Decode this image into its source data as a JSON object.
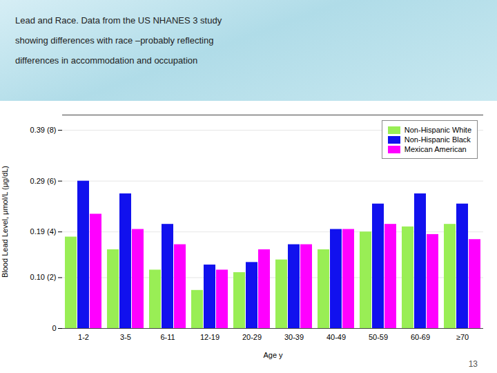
{
  "chart_data": {
    "type": "bar",
    "title": "Lead and Race. Data from the US NHANES 3 study",
    "subtitle": "showing differences with race –probably reflecting\ndifferences in accommodation and occupation",
    "annotations": [
      "13"
    ],
    "xlabel": "Age y",
    "ylabel": "Blood Lead Level, μmol/L (μg/dL)",
    "categories": [
      "1-2",
      "3-5",
      "6-11",
      "12-19",
      "20-29",
      "30-39",
      "40-49",
      "50-59",
      "60-69",
      "≥70"
    ],
    "series": [
      {
        "name": "Non-Hispanic White",
        "color": "#99ee55",
        "values": [
          0.18,
          0.155,
          0.115,
          0.075,
          0.11,
          0.135,
          0.155,
          0.19,
          0.2,
          0.205
        ]
      },
      {
        "name": "Non-Hispanic Black",
        "color": "#1111ee",
        "values": [
          0.29,
          0.265,
          0.205,
          0.125,
          0.13,
          0.165,
          0.195,
          0.245,
          0.265,
          0.245
        ]
      },
      {
        "name": "Mexican American",
        "color": "#ff00ff",
        "values": [
          0.225,
          0.195,
          0.165,
          0.115,
          0.155,
          0.165,
          0.195,
          0.205,
          0.185,
          0.175
        ]
      }
    ],
    "ylim": [
      0,
      0.42
    ],
    "yticks": [
      0,
      {
        "value": 0.1,
        "label": "0.10 (2)"
      },
      {
        "value": 0.19,
        "label": "0.19 (4)"
      },
      {
        "value": 0.29,
        "label": "0.29 (6)"
      },
      {
        "value": 0.39,
        "label": "0.39 (8)"
      }
    ],
    "grid": true,
    "legend": "upper right"
  }
}
